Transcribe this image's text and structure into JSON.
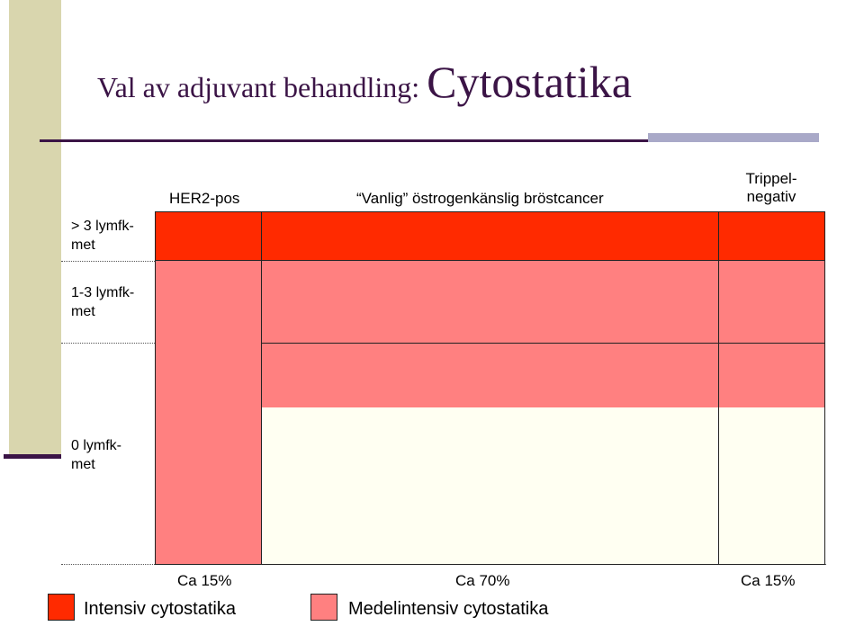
{
  "title": {
    "part1": "Val av adjuvant behandling: ",
    "part2": "Cytostatika"
  },
  "columns": {
    "her2": "HER2-pos",
    "vanlig": "“Vanlig” östrogenkänslig bröstcancer",
    "trippel_line1": "Trippel-",
    "trippel_line2": "negativ"
  },
  "rows": {
    "r1_line1": "> 3 lymfk-",
    "r1_line2": "met",
    "r2_line1": "1-3 lymfk-",
    "r2_line2": "met",
    "r3_line1": "0 lymfk-",
    "r3_line2": "met"
  },
  "percentages": {
    "her2": "Ca 15%",
    "vanlig": "Ca 70%",
    "trippel": "Ca 15%"
  },
  "legend": {
    "intensive": "Intensiv cytostatika",
    "medium": "Medelintensiv cytostatika"
  },
  "colors": {
    "intensive": "#ff2a00",
    "medium": "#ff8080",
    "none": "#fffff2",
    "accent": "#3b1446",
    "sidebar": "#d9d6ae"
  }
}
